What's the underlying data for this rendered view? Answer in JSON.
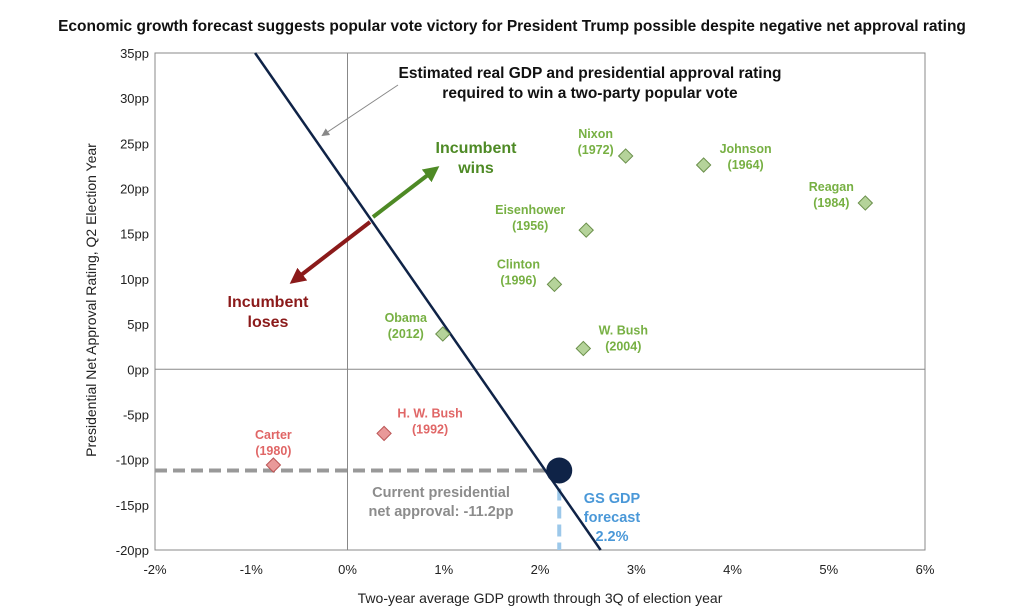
{
  "chart_data": {
    "type": "scatter",
    "title": "Economic growth forecast suggests popular vote victory for President Trump possible despite negative net approval rating",
    "xlabel": "Two-year average GDP growth through 3Q of election year",
    "ylabel": "Presidential Net Approval Rating, Q2 Election Year",
    "xlim": [
      -2,
      6
    ],
    "ylim": [
      -20,
      35
    ],
    "x_ticks": [
      "-2%",
      "-1%",
      "0%",
      "1%",
      "2%",
      "3%",
      "4%",
      "5%",
      "6%"
    ],
    "x_tick_values": [
      -2,
      -1,
      0,
      1,
      2,
      3,
      4,
      5,
      6
    ],
    "y_ticks": [
      "35pp",
      "30pp",
      "25pp",
      "20pp",
      "15pp",
      "10pp",
      "5pp",
      "0pp",
      "-5pp",
      "-10pp",
      "-15pp",
      "-20pp"
    ],
    "y_tick_values": [
      35,
      30,
      25,
      20,
      15,
      10,
      5,
      0,
      -5,
      -10,
      -15,
      -20
    ],
    "grid": false,
    "points": [
      {
        "name": "Nixon",
        "year": "(1972)",
        "x": 2.89,
        "y": 23.6,
        "outcome": "win"
      },
      {
        "name": "Johnson",
        "year": "(1964)",
        "x": 3.7,
        "y": 22.6,
        "outcome": "win"
      },
      {
        "name": "Reagan",
        "year": "(1984)",
        "x": 5.38,
        "y": 18.4,
        "outcome": "win"
      },
      {
        "name": "Eisenhower",
        "year": "(1956)",
        "x": 2.48,
        "y": 15.4,
        "outcome": "win"
      },
      {
        "name": "Clinton",
        "year": "(1996)",
        "x": 2.15,
        "y": 9.4,
        "outcome": "win"
      },
      {
        "name": "Obama",
        "year": "(2012)",
        "x": 0.99,
        "y": 3.9,
        "outcome": "win"
      },
      {
        "name": "W. Bush",
        "year": "(2004)",
        "x": 2.45,
        "y": 2.3,
        "outcome": "win"
      },
      {
        "name": "H. W. Bush",
        "year": "(1992)",
        "x": 0.38,
        "y": -7.1,
        "outcome": "lose"
      },
      {
        "name": "Carter",
        "year": "(1980)",
        "x": -0.77,
        "y": -10.6,
        "outcome": "lose"
      }
    ],
    "threshold_line": {
      "x": [
        -0.96,
        2.63
      ],
      "y": [
        35,
        -20
      ]
    },
    "current": {
      "x": 2.2,
      "y": -11.2
    },
    "annotations": {
      "line_label": [
        "Estimated real GDP and presidential approval rating",
        "required to win a two-party popular vote"
      ],
      "wins": [
        "Incumbent",
        "wins"
      ],
      "loses": [
        "Incumbent",
        "loses"
      ],
      "approval": [
        "Current presidential",
        "net approval: -11.2pp"
      ],
      "forecast": [
        "GS GDP",
        "forecast",
        "2.2%"
      ]
    },
    "colors": {
      "win": "#77b043",
      "win_fill": "#b5d39a",
      "lose": "#e06666",
      "lose_fill": "#e99999",
      "line": "#0f2347",
      "wins_arrow": "#4e8a25",
      "loses_arrow": "#8b1a1a",
      "approval": "#8c8c8c",
      "forecast": "#4a98d8",
      "forecast_dash": "#9cc8ea"
    }
  }
}
